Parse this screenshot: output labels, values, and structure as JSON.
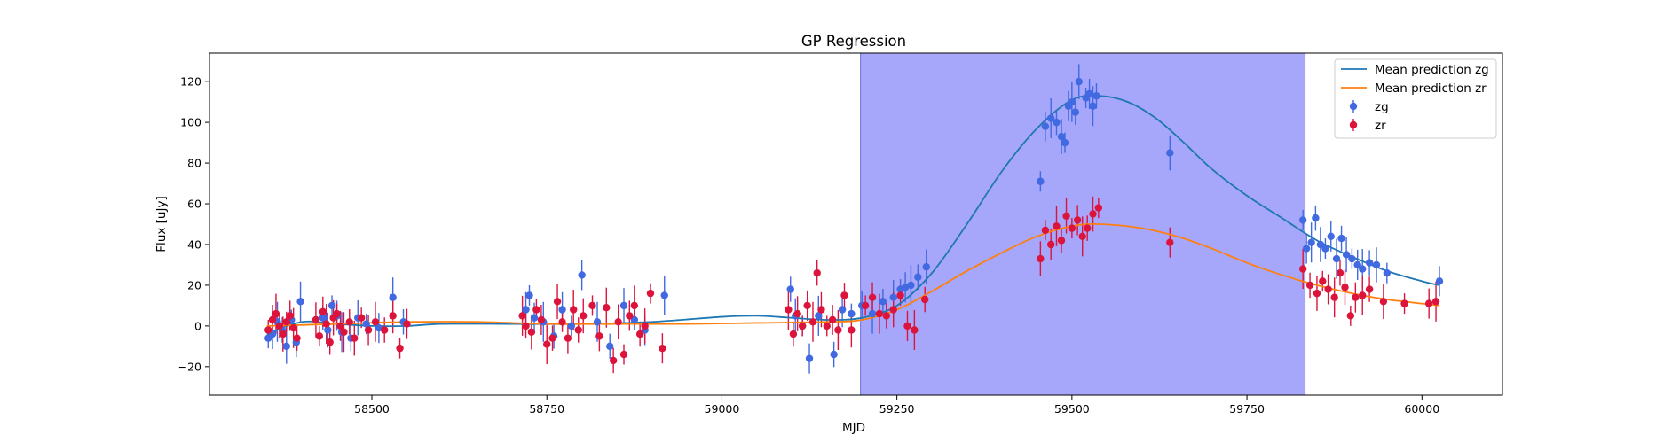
{
  "chart_data": {
    "type": "scatter",
    "title": "GP Regression",
    "xlabel": "MJD",
    "ylabel": "Flux [uJy]",
    "xlim": [
      58268,
      60115
    ],
    "ylim": [
      -34,
      134
    ],
    "x_ticks": [
      58500,
      58750,
      59000,
      59250,
      59500,
      59750,
      60000
    ],
    "y_ticks": [
      -20,
      0,
      20,
      40,
      60,
      80,
      100,
      120
    ],
    "grid": false,
    "legend_position": "top-right",
    "shaded_region": {
      "x_start": 59198,
      "x_end": 59833,
      "color": "#a6a6fb"
    },
    "legend": [
      {
        "label": "Mean prediction zg",
        "kind": "line",
        "color": "#1f77b4"
      },
      {
        "label": "Mean prediction zr",
        "kind": "line",
        "color": "#ff7f0e"
      },
      {
        "label": "zg",
        "kind": "errorbar",
        "color": "#4169e1"
      },
      {
        "label": "zr",
        "kind": "errorbar",
        "color": "#dc143c"
      }
    ],
    "series": [
      {
        "name": "Mean prediction zg",
        "kind": "line",
        "color": "#1f77b4",
        "x": [
          58350,
          58400,
          58450,
          58500,
          58550,
          58600,
          58700,
          58800,
          58900,
          59000,
          59050,
          59100,
          59150,
          59200,
          59250,
          59300,
          59350,
          59400,
          59450,
          59500,
          59540,
          59580,
          59620,
          59660,
          59700,
          59750,
          59800,
          59850,
          59900,
          59950,
          60000,
          60025
        ],
        "y": [
          -4,
          2,
          1,
          0,
          0,
          1,
          1,
          1,
          2,
          4.5,
          5,
          4,
          3,
          4,
          10,
          26,
          50,
          76,
          97,
          111,
          113,
          110,
          102,
          90,
          77,
          64,
          53,
          42,
          34,
          27,
          22,
          20
        ]
      },
      {
        "name": "Mean prediction zr",
        "kind": "line",
        "color": "#ff7f0e",
        "x": [
          58350,
          58450,
          58550,
          58650,
          58750,
          58850,
          58950,
          59050,
          59150,
          59200,
          59250,
          59300,
          59350,
          59400,
          59450,
          59500,
          59540,
          59600,
          59650,
          59700,
          59750,
          59800,
          59850,
          59900,
          59950,
          60000,
          60025
        ],
        "y": [
          0,
          1,
          2,
          2,
          1,
          1,
          1,
          1.5,
          2,
          3,
          8,
          17,
          27,
          36,
          44,
          49,
          50,
          48,
          44,
          38,
          31,
          25,
          20,
          16,
          13,
          11,
          10
        ]
      },
      {
        "name": "zg",
        "kind": "errorbar",
        "color": "#4169e1",
        "x": [
          58352,
          58358,
          58365,
          58372,
          58378,
          58385,
          58392,
          58398,
          58430,
          58437,
          58443,
          58450,
          58457,
          58470,
          58480,
          58492,
          58510,
          58530,
          58545,
          58720,
          58725,
          58732,
          58745,
          58760,
          58772,
          58785,
          58800,
          58822,
          58840,
          58860,
          58875,
          58890,
          58918,
          59098,
          59105,
          59115,
          59125,
          59138,
          59160,
          59172,
          59185,
          59200,
          59215,
          59230,
          59245,
          59255,
          59262,
          59270,
          59280,
          59292,
          59455,
          59462,
          59470,
          59478,
          59485,
          59490,
          59495,
          59500,
          59505,
          59510,
          59520,
          59525,
          59530,
          59535,
          59640,
          59830,
          59835,
          59842,
          59848,
          59855,
          59862,
          59870,
          59878,
          59885,
          59892,
          59900,
          59908,
          59915,
          59925,
          59935,
          59950,
          60025
        ],
        "y": [
          -6,
          -4,
          2,
          -2,
          -10,
          3,
          -8,
          12,
          4,
          -2,
          10,
          5,
          -3,
          -6,
          4,
          1,
          -1,
          14,
          2,
          8,
          15,
          4,
          2,
          -5,
          8,
          0,
          25,
          2,
          -10,
          10,
          3,
          -2,
          15,
          18,
          5,
          0,
          -16,
          5,
          -14,
          8,
          6,
          10,
          6,
          12,
          14,
          18,
          19,
          20,
          24,
          29,
          71,
          98,
          102,
          100,
          93,
          90,
          108,
          110,
          105,
          120,
          112,
          114,
          108,
          113,
          85,
          52,
          38,
          41,
          53,
          40,
          38,
          44,
          33,
          43,
          35,
          33,
          30,
          28,
          31,
          30,
          26,
          22
        ]
      },
      {
        "name": "zr",
        "kind": "errorbar",
        "color": "#dc143c",
        "x": [
          58352,
          58358,
          58363,
          58368,
          58373,
          58378,
          58383,
          58388,
          58393,
          58420,
          58425,
          58430,
          58435,
          58440,
          58445,
          58450,
          58455,
          58460,
          58468,
          58475,
          58485,
          58495,
          58505,
          58518,
          58530,
          58540,
          58550,
          58715,
          58720,
          58728,
          58735,
          58742,
          58750,
          58758,
          58765,
          58772,
          58780,
          58788,
          58795,
          58802,
          58815,
          58825,
          58835,
          58845,
          58852,
          58860,
          58868,
          58875,
          58883,
          58890,
          58898,
          58915,
          59095,
          59102,
          59108,
          59115,
          59122,
          59130,
          59136,
          59142,
          59150,
          59158,
          59166,
          59175,
          59185,
          59205,
          59215,
          59225,
          59235,
          59245,
          59255,
          59265,
          59275,
          59290,
          59455,
          59462,
          59470,
          59478,
          59485,
          59492,
          59500,
          59508,
          59515,
          59522,
          59530,
          59538,
          59640,
          59830,
          59840,
          59850,
          59858,
          59866,
          59875,
          59883,
          59890,
          59898,
          59905,
          59915,
          59925,
          59945,
          59975,
          60010,
          60020
        ],
        "y": [
          -2,
          3,
          6,
          0,
          -4,
          2,
          5,
          -1,
          -6,
          3,
          -5,
          7,
          1,
          -8,
          4,
          6,
          0,
          -3,
          2,
          -6,
          4,
          -2,
          2,
          -2,
          5,
          -11,
          1,
          5,
          0,
          -3,
          8,
          3,
          -9,
          -6,
          12,
          2,
          -6,
          8,
          -2,
          5,
          10,
          -5,
          9,
          -17,
          2,
          -14,
          5,
          10,
          -4,
          0,
          16,
          -11,
          8,
          -4,
          6,
          0,
          10,
          2,
          26,
          8,
          0,
          3,
          -2,
          15,
          -2,
          10,
          14,
          6,
          5,
          8,
          15,
          0,
          -2,
          13,
          33,
          47,
          40,
          49,
          42,
          54,
          48,
          52,
          44,
          48,
          55,
          58,
          41,
          28,
          20,
          16,
          22,
          18,
          14,
          26,
          19,
          5,
          14,
          15,
          18,
          12,
          11,
          11,
          12
        ]
      }
    ]
  }
}
